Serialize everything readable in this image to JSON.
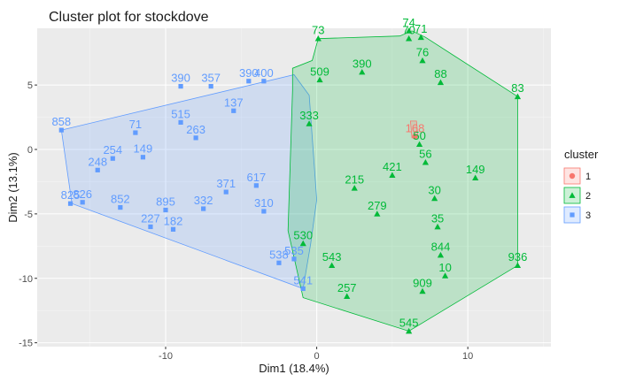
{
  "chart_data": {
    "type": "scatter",
    "title": "Cluster plot for stockdove",
    "xlabel": "Dim1 (18.4%)",
    "ylabel": "Dim2 (13.1%)",
    "xlim": [
      -18.5,
      15.5
    ],
    "ylim": [
      -15.3,
      9.4
    ],
    "x_ticks": [
      -10,
      0,
      10
    ],
    "y_ticks": [
      -15,
      -10,
      -5,
      0,
      5
    ],
    "grid": true,
    "legend": {
      "title": "cluster",
      "position": "right",
      "entries": [
        "1",
        "2",
        "3"
      ]
    },
    "clusters": [
      {
        "name": "1",
        "color": "#F8766D",
        "shape": "circle",
        "hull": [
          [
            6.2,
            2.2
          ],
          [
            6.6,
            2.2
          ],
          [
            6.7,
            1.0
          ],
          [
            6.3,
            0.9
          ]
        ],
        "points": [
          {
            "x": 6.5,
            "y": 1.0,
            "label": "168"
          }
        ]
      },
      {
        "name": "2",
        "color": "#00BA38",
        "shape": "triangle",
        "hull": [
          [
            0.1,
            8.6
          ],
          [
            5.5,
            8.8
          ],
          [
            6.3,
            9.2
          ],
          [
            7.2,
            8.7
          ],
          [
            13.3,
            4.1
          ],
          [
            13.3,
            -9.0
          ],
          [
            6.1,
            -14.1
          ],
          [
            -0.9,
            -11.5
          ],
          [
            -1.9,
            -6.3
          ],
          [
            -1.6,
            4.6
          ],
          [
            -1.6,
            6.3
          ],
          [
            -0.3,
            6.9
          ]
        ],
        "points": [
          {
            "x": 0.1,
            "y": 8.6,
            "label": "73"
          },
          {
            "x": 6.1,
            "y": 9.2,
            "label": "74"
          },
          {
            "x": 6.1,
            "y": 8.6,
            "label": "70"
          },
          {
            "x": 6.9,
            "y": 8.7,
            "label": "71"
          },
          {
            "x": 7.0,
            "y": 6.9,
            "label": "76"
          },
          {
            "x": 8.2,
            "y": 5.2,
            "label": "88"
          },
          {
            "x": 13.3,
            "y": 4.1,
            "label": "83"
          },
          {
            "x": 10.5,
            "y": -2.2,
            "label": "149"
          },
          {
            "x": 7.8,
            "y": -3.8,
            "label": "30"
          },
          {
            "x": 8.0,
            "y": -6.0,
            "label": "35"
          },
          {
            "x": 8.2,
            "y": -8.2,
            "label": "844"
          },
          {
            "x": 8.5,
            "y": -9.8,
            "label": "10"
          },
          {
            "x": 13.3,
            "y": -9.0,
            "label": "936"
          },
          {
            "x": 6.1,
            "y": -14.1,
            "label": "545"
          },
          {
            "x": 7.0,
            "y": -11.0,
            "label": "909"
          },
          {
            "x": 2.0,
            "y": -11.4,
            "label": "257"
          },
          {
            "x": -0.9,
            "y": -7.3,
            "label": "530"
          },
          {
            "x": 7.2,
            "y": -1.0,
            "label": "56"
          },
          {
            "x": 6.8,
            "y": 0.4,
            "label": "50"
          },
          {
            "x": 0.2,
            "y": 5.4,
            "label": "509"
          },
          {
            "x": 3.0,
            "y": 6.0,
            "label": "390"
          },
          {
            "x": 2.5,
            "y": -3.0,
            "label": "215"
          },
          {
            "x": 4.0,
            "y": -5.0,
            "label": "279"
          },
          {
            "x": 1.0,
            "y": -9.0,
            "label": "543"
          },
          {
            "x": 5.0,
            "y": -2.0,
            "label": "421"
          },
          {
            "x": -0.5,
            "y": 2.0,
            "label": "333"
          }
        ]
      },
      {
        "name": "3",
        "color": "#619CFF",
        "shape": "square",
        "hull": [
          [
            -16.9,
            1.5
          ],
          [
            -1.5,
            5.8
          ],
          [
            -0.5,
            4.2
          ],
          [
            0.0,
            -3.9
          ],
          [
            -0.4,
            -7.3
          ],
          [
            -0.9,
            -10.8
          ],
          [
            -16.2,
            -4.2
          ]
        ],
        "points": [
          {
            "x": -16.9,
            "y": 1.5,
            "label": "858"
          },
          {
            "x": -16.3,
            "y": -4.2,
            "label": "825"
          },
          {
            "x": -15.5,
            "y": -4.1,
            "label": "826"
          },
          {
            "x": -14.5,
            "y": -1.6,
            "label": "248"
          },
          {
            "x": -13.0,
            "y": -4.5,
            "label": "852"
          },
          {
            "x": -11.0,
            "y": -6.0,
            "label": "227"
          },
          {
            "x": -9.5,
            "y": -6.2,
            "label": "182"
          },
          {
            "x": -9.0,
            "y": 4.9,
            "label": "390"
          },
          {
            "x": -7.0,
            "y": 4.9,
            "label": "357"
          },
          {
            "x": -4.5,
            "y": 5.3,
            "label": "390"
          },
          {
            "x": -3.5,
            "y": 5.3,
            "label": "400"
          },
          {
            "x": -2.5,
            "y": -8.8,
            "label": "538"
          },
          {
            "x": -1.5,
            "y": -8.5,
            "label": "535"
          },
          {
            "x": -0.9,
            "y": -10.8,
            "label": "541"
          },
          {
            "x": -3.5,
            "y": -4.8,
            "label": "310"
          },
          {
            "x": -13.5,
            "y": -0.7,
            "label": "254"
          },
          {
            "x": -12.0,
            "y": 1.3,
            "label": "71"
          },
          {
            "x": -11.5,
            "y": -0.6,
            "label": "149"
          },
          {
            "x": -10.0,
            "y": -4.7,
            "label": "895"
          },
          {
            "x": -7.5,
            "y": -4.6,
            "label": "332"
          },
          {
            "x": -6.0,
            "y": -3.3,
            "label": "371"
          },
          {
            "x": -9.0,
            "y": 2.1,
            "label": "515"
          },
          {
            "x": -8.0,
            "y": 0.9,
            "label": "263"
          },
          {
            "x": -5.5,
            "y": 3.0,
            "label": "137"
          },
          {
            "x": -4.0,
            "y": -2.8,
            "label": "617"
          }
        ]
      }
    ]
  }
}
